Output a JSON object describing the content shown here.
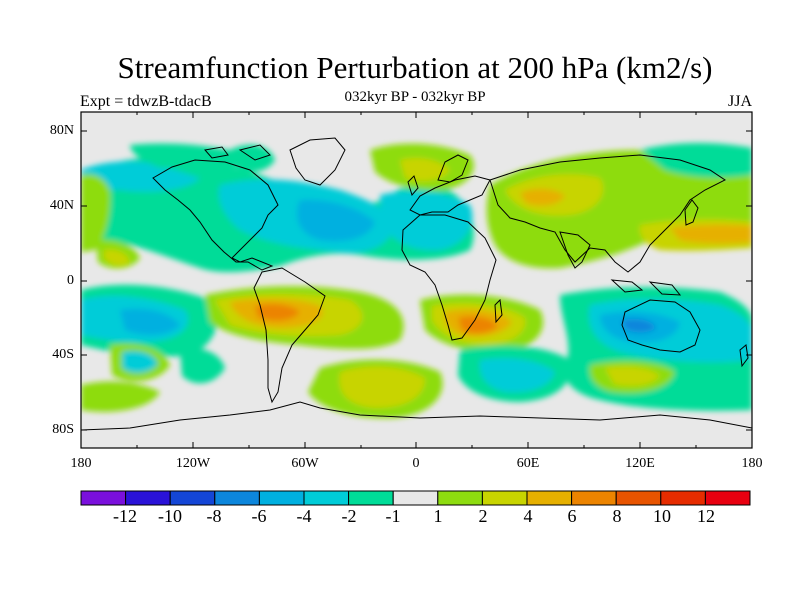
{
  "title": "Streamfunction Perturbation at 200 hPa (km2/s)",
  "subtitle": "032kyr BP - 032kyr BP",
  "left_label": "Expt = tdwzB-tdacB",
  "right_label": "JJA",
  "map": {
    "projection": "cylindrical-equidistant",
    "lon_range": [
      -180,
      180
    ],
    "lat_range": [
      -90,
      90
    ],
    "lat_ticks": [
      "80N",
      "40N",
      "0",
      "40S",
      "80S"
    ],
    "lon_ticks": [
      "180",
      "120W",
      "60W",
      "0",
      "60E",
      "120E",
      "180"
    ]
  },
  "colorbar": {
    "labels": [
      "-12",
      "-10",
      "-8",
      "-6",
      "-4",
      "-2",
      "-1",
      "1",
      "2",
      "4",
      "6",
      "8",
      "10",
      "12"
    ],
    "colors": [
      "#7a10dc",
      "#2a12d8",
      "#1446d6",
      "#0c86dc",
      "#00b0e0",
      "#00ccd8",
      "#00dc98",
      "#e8e8e8",
      "#8edc10",
      "#c8d400",
      "#e6b000",
      "#ec8400",
      "#e85400",
      "#e62c00",
      "#e80010"
    ]
  }
}
